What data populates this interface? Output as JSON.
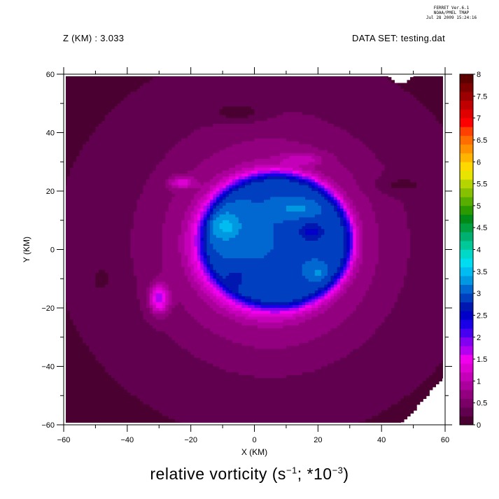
{
  "stamp": {
    "line1": "FERRET Ver.6.1",
    "line2": "NOAA/PMEL TMAP",
    "line3": "Jul 28 2009 15:24:16"
  },
  "header": {
    "left": "Z (KM) : 3.033",
    "right": "DATA SET: testing.dat"
  },
  "caption": {
    "prefix": "relative vorticity (s",
    "exp1": "−1",
    "middle": "; *10",
    "exp2": "−3",
    "suffix": ")"
  },
  "chart_data": {
    "type": "heatmap",
    "subtype": "filled-contour",
    "xlabel": "X (KM)",
    "ylabel": "Y (KM)",
    "xlim": [
      -60,
      60
    ],
    "ylim": [
      -60,
      60
    ],
    "xticks": [
      -60,
      -40,
      -20,
      0,
      20,
      40,
      60
    ],
    "yticks": [
      -60,
      -40,
      -20,
      0,
      20,
      40,
      60
    ],
    "colorbar": {
      "range": [
        0,
        8
      ],
      "step": 0.25,
      "labels": [
        "8",
        "7.5",
        "7",
        "6.5",
        "6",
        "5.5",
        "5",
        "4.5",
        "4",
        "3.5",
        "3",
        "2.5",
        "2",
        "1.5",
        "1",
        "0.5",
        "0"
      ],
      "colors": [
        "#4a0030",
        "#620050",
        "#7a0068",
        "#920080",
        "#ac009c",
        "#c400b8",
        "#dc00d2",
        "#f000ec",
        "#b400f0",
        "#8400f0",
        "#4800f0",
        "#1a00e6",
        "#0000c8",
        "#0018b0",
        "#0040c0",
        "#0068d0",
        "#0098e0",
        "#00bcf0",
        "#00dcf0",
        "#00d8c8",
        "#00c898",
        "#00b070",
        "#00a040",
        "#008a18",
        "#2a9a00",
        "#58ae00",
        "#86c000",
        "#b6d400",
        "#e6e400",
        "#ffd800",
        "#ffb400",
        "#ff9000",
        "#ff6c00",
        "#ff4000",
        "#ff0000",
        "#e00000",
        "#c00000",
        "#9c0000",
        "#7c0000",
        "#5c0000"
      ]
    },
    "field": {
      "background": 0.2,
      "features": [
        {
          "kind": "ring",
          "cx": 5,
          "cy": 2,
          "rx": 60,
          "ry": 60,
          "width": 20,
          "value": 0.55
        },
        {
          "kind": "ring",
          "cx": 5,
          "cy": 2,
          "rx": 36,
          "ry": 38,
          "width": 13,
          "value": 0.85
        },
        {
          "kind": "ring",
          "cx": 5,
          "cy": 2,
          "rx": 26,
          "ry": 26,
          "width": 6,
          "value": 1.9
        },
        {
          "kind": "core",
          "cx": 7,
          "cy": 3,
          "rx": 24,
          "ry": 23,
          "value": 3.8
        },
        {
          "kind": "blob",
          "cx": -9,
          "cy": 8,
          "rx": 5,
          "ry": 5,
          "value": 0.6
        },
        {
          "kind": "blob",
          "cx": 13,
          "cy": 14,
          "rx": 5,
          "ry": 2,
          "value": 0.4
        },
        {
          "kind": "blob",
          "cx": 18,
          "cy": 6,
          "rx": 4,
          "ry": 3,
          "value": -0.6
        },
        {
          "kind": "blob",
          "cx": -6,
          "cy": -10,
          "rx": 3,
          "ry": 3,
          "value": -0.5
        },
        {
          "kind": "blob",
          "cx": 20,
          "cy": -8,
          "rx": 2,
          "ry": 2,
          "value": 0.4
        },
        {
          "kind": "blob",
          "cx": -30,
          "cy": -17,
          "rx": 3,
          "ry": 5,
          "value": 1.6
        },
        {
          "kind": "blob",
          "cx": -23,
          "cy": 23,
          "rx": 4,
          "ry": 2,
          "value": 0.9
        },
        {
          "kind": "blob",
          "cx": 15,
          "cy": 31,
          "rx": 6,
          "ry": 2,
          "value": 0.6
        },
        {
          "kind": "blob",
          "cx": -5,
          "cy": 47,
          "rx": 8,
          "ry": 3,
          "value": -0.4
        },
        {
          "kind": "blob",
          "cx": 46,
          "cy": 22,
          "rx": 8,
          "ry": 3,
          "value": -0.3
        },
        {
          "kind": "blob",
          "cx": -48,
          "cy": -10,
          "rx": 2,
          "ry": 3,
          "value": -0.5
        }
      ],
      "missing_regions": [
        {
          "kind": "ellipse",
          "cx": 46,
          "cy": 60,
          "rx": 4,
          "ry": 3
        },
        {
          "kind": "triangle",
          "points": [
            [
              46,
              -60
            ],
            [
              60,
              -60
            ],
            [
              60,
              -43
            ]
          ]
        }
      ]
    }
  }
}
